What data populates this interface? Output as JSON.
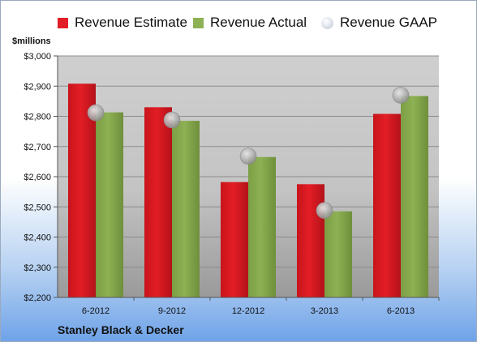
{
  "legend": [
    {
      "label": "Revenue Estimate",
      "color": "#e31d25",
      "kind": "bar"
    },
    {
      "label": "Revenue Actual",
      "color": "#8db153",
      "kind": "bar"
    },
    {
      "label": "Revenue GAAP",
      "color": "#c9cfda",
      "kind": "bubble"
    }
  ],
  "unit_label": "$millions",
  "company": "Stanley Black & Decker",
  "chart_data": {
    "type": "bar",
    "categories": [
      "6-2012",
      "9-2012",
      "12-2012",
      "3-2013",
      "6-2013"
    ],
    "series": [
      {
        "name": "Revenue Estimate",
        "values": [
          2908,
          2830,
          2582,
          2575,
          2808
        ],
        "color": "#e31d25"
      },
      {
        "name": "Revenue Actual",
        "values": [
          2813,
          2785,
          2665,
          2485,
          2867
        ],
        "color": "#8db153"
      },
      {
        "name": "Revenue GAAP",
        "values": [
          2812,
          2788,
          2668,
          2488,
          2870
        ],
        "marker": "bubble"
      }
    ],
    "y_ticks": [
      "$2,200",
      "$2,300",
      "$2,400",
      "$2,500",
      "$2,600",
      "$2,700",
      "$2,800",
      "$2,900",
      "$3,000"
    ],
    "ylim": [
      2200,
      3000
    ],
    "grid": true,
    "legend_position": "top"
  }
}
